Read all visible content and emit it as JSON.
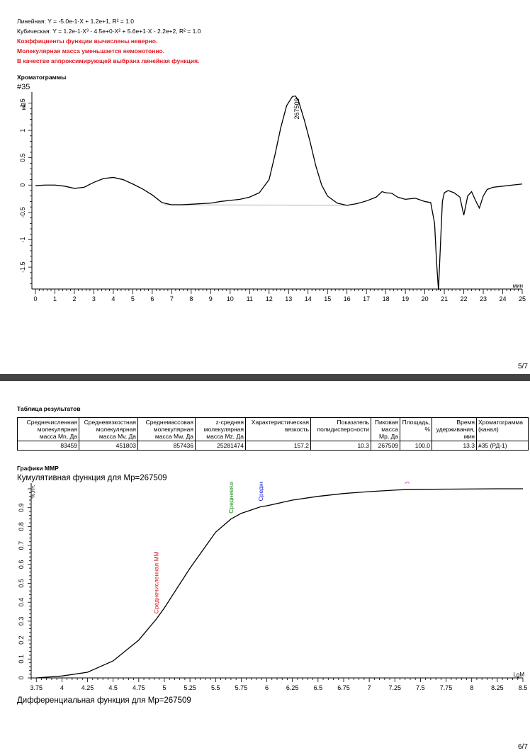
{
  "page1": {
    "linear_text": "Линейная: Y = -5.0e-1·X + 1.2e+1, R² = 1.0",
    "cubic_text": "Кубическая: Y = 1.2e-1·X³ - 4.5e+0·X² + 5.6e+1·X - 2.2e+2, R² = 1.0",
    "warnings": [
      "Коэффициенты функции вычислены неверно.",
      "Молекулярная масса уменьшается немонотонно.",
      "В качестве аппроксимирующей выбрана линейная функция."
    ],
    "chromatograms_title": "Хроматограммы",
    "chromatogram_label": "#35",
    "page_number": "5/7"
  },
  "page2": {
    "results_title": "Таблица результатов",
    "table": {
      "headers": [
        "Среднечисленная молекулярная масса Mn, Да",
        "Средневязкостная молекулярная масса Mv, Да",
        "Среднемассовая молекулярная масса Mw, Да",
        "z-средняя молекулярная масса Mz, Да",
        "Характеристическая вязкость",
        "Показатель полидисперсности",
        "Пиковая масса Mp, Да",
        "Площадь, %",
        "Время удерживания, мин",
        "Хроматограмма (канал)"
      ],
      "row": [
        "83459",
        "451803",
        "857436",
        "25281474",
        "157.2",
        "10.3",
        "267509",
        "100.0",
        "13.3",
        "#35 (РД-1)"
      ]
    },
    "mmr_title": "Графики ММР",
    "cumulative_title": "Кумулятивная функция для Mp=267509",
    "differential_title": "Дифференциальная функция для Mp=267509",
    "page_number": "6/7"
  },
  "chart_data": [
    {
      "type": "line",
      "title": "#35",
      "ylabel": "мВ",
      "xlabel": "мин",
      "xlim": [
        0,
        25
      ],
      "ylim": [
        -1.9,
        1.7
      ],
      "x_ticks": [
        0,
        1,
        2,
        3,
        4,
        5,
        6,
        7,
        8,
        9,
        10,
        11,
        12,
        13,
        14,
        15,
        16,
        17,
        18,
        19,
        20,
        21,
        22,
        23,
        24,
        25
      ],
      "y_ticks": [
        "1.5",
        "1",
        "0.5",
        "0",
        "-0.5",
        "-1",
        "-1.5"
      ],
      "series": [
        {
          "x": [
            0,
            0.5,
            1,
            1.5,
            2,
            2.5,
            3,
            3.5,
            4,
            4.5,
            5,
            5.5,
            6,
            6.5,
            7,
            7.5,
            8,
            8.5,
            9,
            9.5,
            10,
            10.5,
            11,
            11.5,
            12,
            12.3,
            12.6,
            12.9,
            13.2,
            13.35,
            13.5,
            13.8,
            14.1,
            14.4,
            14.7,
            15,
            15.5,
            16,
            16.5,
            17,
            17.5,
            17.8,
            18,
            18.3,
            18.6,
            19,
            19.5,
            20,
            20.3,
            20.5,
            20.6,
            20.7,
            20.8,
            20.9,
            21.0,
            21.2,
            21.5,
            21.8,
            22,
            22.2,
            22.4,
            22.6,
            22.8,
            23,
            23.2,
            23.5,
            24,
            24.5,
            25
          ],
          "y": [
            -0.01,
            0,
            0,
            -0.02,
            -0.06,
            -0.04,
            0.05,
            0.12,
            0.14,
            0.1,
            0.02,
            -0.07,
            -0.18,
            -0.32,
            -0.36,
            -0.36,
            -0.35,
            -0.34,
            -0.33,
            -0.3,
            -0.28,
            -0.26,
            -0.22,
            -0.14,
            0.1,
            0.55,
            1.05,
            1.45,
            1.62,
            1.63,
            1.55,
            1.2,
            0.8,
            0.35,
            0.0,
            -0.2,
            -0.33,
            -0.37,
            -0.34,
            -0.29,
            -0.22,
            -0.12,
            -0.14,
            -0.15,
            -0.22,
            -0.26,
            -0.24,
            -0.3,
            -0.32,
            -0.7,
            -1.4,
            -1.92,
            -1.1,
            -0.3,
            -0.14,
            -0.1,
            -0.14,
            -0.22,
            -0.55,
            -0.2,
            -0.12,
            -0.28,
            -0.42,
            -0.2,
            -0.08,
            -0.04,
            -0.02,
            0,
            0.02
          ]
        }
      ],
      "baseline": {
        "x": [
          6.6,
          16.1
        ],
        "y": [
          -0.36,
          -0.37
        ]
      },
      "annotations": [
        {
          "text": "267509",
          "x": 13.35,
          "y": 1.63
        }
      ]
    },
    {
      "type": "line",
      "title": "Кумулятивная функция для Mp=267509",
      "xlabel": "LgM",
      "ylabel": "%,Нт.",
      "xlim": [
        3.7,
        8.5
      ],
      "ylim": [
        0,
        1
      ],
      "x_ticks": [
        "3.75",
        "4",
        "4.25",
        "4.5",
        "4.75",
        "5",
        "5.25",
        "5.5",
        "5.75",
        "6",
        "6.25",
        "6.5",
        "6.75",
        "7",
        "7.25",
        "7.5",
        "7.75",
        "8",
        "8.25",
        "8.5"
      ],
      "y_ticks": [
        "0",
        "0.1",
        "0.2",
        "0.3",
        "0.4",
        "0.5",
        "0.6",
        "0.7",
        "0.8",
        "0.9"
      ],
      "series": [
        {
          "x": [
            3.75,
            4,
            4.25,
            4.5,
            4.75,
            4.92,
            5,
            5.25,
            5.5,
            5.65,
            5.75,
            5.94,
            6,
            6.25,
            6.5,
            6.75,
            7,
            7.25,
            7.37,
            7.5,
            7.75,
            8,
            8.25,
            8.5
          ],
          "y": [
            0.0,
            0.01,
            0.03,
            0.09,
            0.2,
            0.31,
            0.37,
            0.58,
            0.77,
            0.84,
            0.87,
            0.905,
            0.91,
            0.94,
            0.96,
            0.975,
            0.985,
            0.993,
            0.996,
            0.997,
            0.998,
            0.999,
            1.0,
            1.0
          ]
        }
      ],
      "markers": [
        {
          "label": "Среднечисленная ММ",
          "x": 4.92,
          "y": 0.31,
          "color": "#e0141e"
        },
        {
          "label": "Средневязкостная масса",
          "x": 5.65,
          "y": 0.84,
          "color": "#169116"
        },
        {
          "label": "Среднемассовая ММ",
          "x": 5.94,
          "y": 0.905,
          "color": "#1414e0"
        },
        {
          "label": "Усредненная по z ММ",
          "x": 7.37,
          "y": 0.996,
          "color": "#8c1a8c"
        }
      ]
    }
  ]
}
